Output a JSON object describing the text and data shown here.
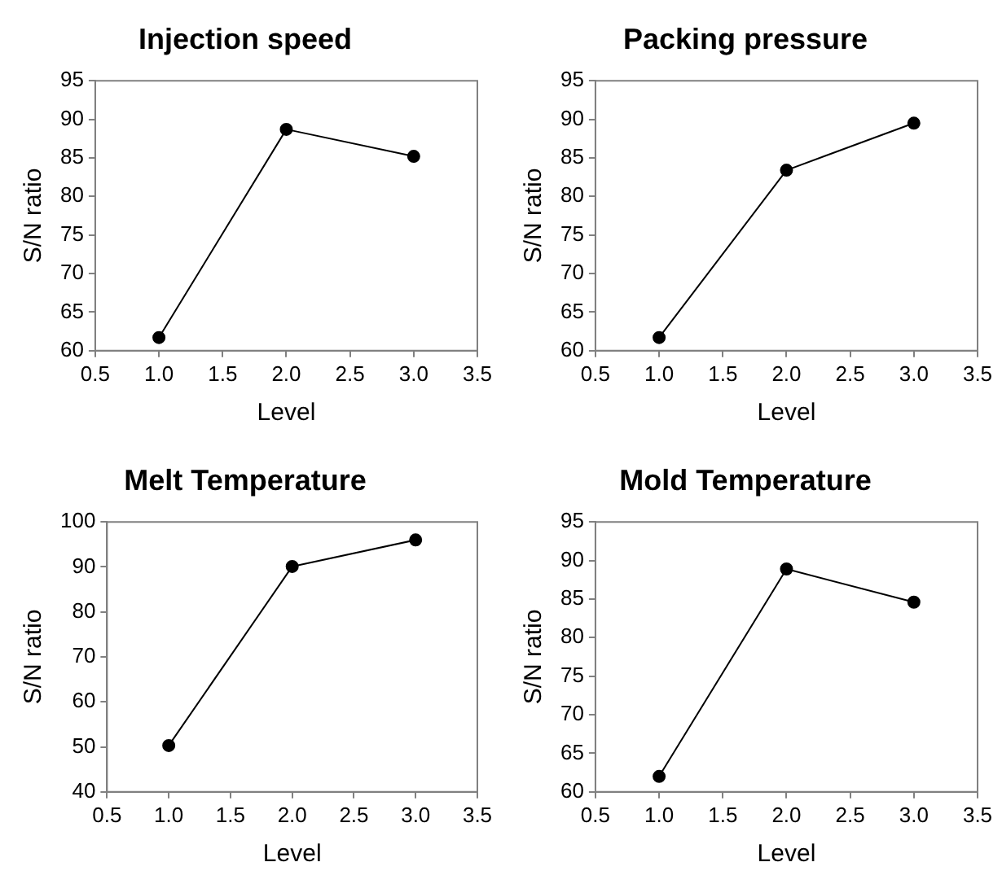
{
  "chart_data": [
    {
      "type": "line",
      "title": "Injection speed",
      "xlabel": "Level",
      "ylabel": "S/N ratio",
      "x": [
        1,
        2,
        3
      ],
      "series": [
        {
          "color": "#000000",
          "values": [
            61.7,
            88.7,
            85.2
          ]
        }
      ],
      "xlim": [
        0.5,
        3.5
      ],
      "xticks": [
        {
          "value": 0.5,
          "label": "0.5"
        },
        {
          "value": 1,
          "label": "1.0"
        },
        {
          "value": 1.5,
          "label": "1.5"
        },
        {
          "value": 2,
          "label": "2.0"
        },
        {
          "value": 2.5,
          "label": "2.5"
        },
        {
          "value": 3,
          "label": "3.0"
        },
        {
          "value": 3.5,
          "label": "3.5"
        }
      ],
      "ylim": [
        60,
        95
      ],
      "yticks": [
        60,
        65,
        70,
        75,
        80,
        85,
        90,
        95
      ],
      "marker": "circle",
      "line_style": "solid",
      "grid": false,
      "legend": false
    },
    {
      "type": "line",
      "title": "Packing pressure",
      "xlabel": "Level",
      "ylabel": "S/N ratio",
      "x": [
        1,
        2,
        3
      ],
      "series": [
        {
          "color": "#000000",
          "values": [
            61.7,
            83.4,
            89.5
          ]
        }
      ],
      "xlim": [
        0.5,
        3.5
      ],
      "xticks": [
        {
          "value": 0.5,
          "label": "0.5"
        },
        {
          "value": 1,
          "label": "1.0"
        },
        {
          "value": 1.5,
          "label": "1.5"
        },
        {
          "value": 2,
          "label": "2.0"
        },
        {
          "value": 2.5,
          "label": "2.5"
        },
        {
          "value": 3,
          "label": "3.0"
        },
        {
          "value": 3.5,
          "label": "3.5"
        }
      ],
      "ylim": [
        60,
        95
      ],
      "yticks": [
        60,
        65,
        70,
        75,
        80,
        85,
        90,
        95
      ],
      "marker": "circle",
      "line_style": "solid",
      "grid": false,
      "legend": false
    },
    {
      "type": "line",
      "title": "Melt Temperature",
      "xlabel": "Level",
      "ylabel": "S/N ratio",
      "x": [
        1,
        2,
        3
      ],
      "series": [
        {
          "color": "#000000",
          "values": [
            50.3,
            90.1,
            96.0
          ]
        }
      ],
      "xlim": [
        0.5,
        3.5
      ],
      "xticks": [
        {
          "value": 0.5,
          "label": "0.5"
        },
        {
          "value": 1,
          "label": "1.0"
        },
        {
          "value": 1.5,
          "label": "1.5"
        },
        {
          "value": 2,
          "label": "2.0"
        },
        {
          "value": 2.5,
          "label": "2.5"
        },
        {
          "value": 3,
          "label": "3.0"
        },
        {
          "value": 3.5,
          "label": "3.5"
        }
      ],
      "ylim": [
        40,
        100
      ],
      "yticks": [
        40,
        50,
        60,
        70,
        80,
        90,
        100
      ],
      "marker": "circle",
      "line_style": "solid",
      "grid": false,
      "legend": false
    },
    {
      "type": "line",
      "title": "Mold Temperature",
      "xlabel": "Level",
      "ylabel": "S/N ratio",
      "x": [
        1,
        2,
        3
      ],
      "series": [
        {
          "color": "#000000",
          "values": [
            62.0,
            88.9,
            84.6
          ]
        }
      ],
      "xlim": [
        0.5,
        3.5
      ],
      "xticks": [
        {
          "value": 0.5,
          "label": "0.5"
        },
        {
          "value": 1,
          "label": "1.0"
        },
        {
          "value": 1.5,
          "label": "1.5"
        },
        {
          "value": 2,
          "label": "2.0"
        },
        {
          "value": 2.5,
          "label": "2.5"
        },
        {
          "value": 3,
          "label": "3.0"
        },
        {
          "value": 3.5,
          "label": "3.5"
        }
      ],
      "ylim": [
        60,
        95
      ],
      "yticks": [
        60,
        65,
        70,
        75,
        80,
        85,
        90,
        95
      ],
      "marker": "circle",
      "line_style": "solid",
      "grid": false,
      "legend": false
    }
  ]
}
